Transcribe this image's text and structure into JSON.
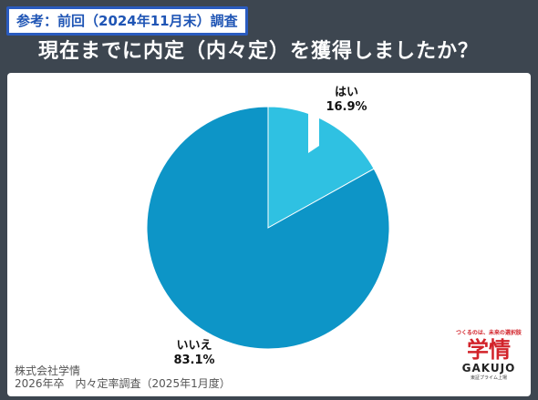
{
  "badge": "参考：前回（2024年11月末）調査",
  "title": "現在までに内定（内々定）を獲得しましたか？",
  "chart_data": {
    "type": "pie",
    "categories": [
      "はい",
      "いいえ"
    ],
    "values": [
      16.9,
      83.1
    ],
    "labels": [
      "16.9%",
      "83.1%"
    ],
    "colors": [
      "#2fc1e2",
      "#0d95c7"
    ],
    "start": "12 o'clock",
    "direction": "clockwise"
  },
  "footer": {
    "line1": "株式会社学情",
    "line2": "2026年卒　内々定率調査（2025年1月度）"
  },
  "logo": {
    "tagline": "つくるのは、未来の選択肢",
    "mark": "学情",
    "roman": "GAKUJO",
    "sub": "東証プライム上場"
  }
}
